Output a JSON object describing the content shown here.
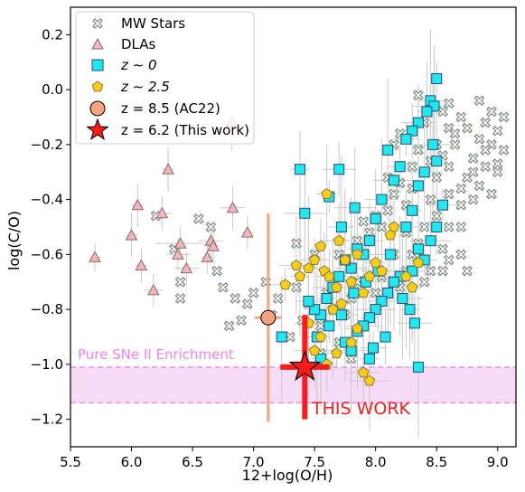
{
  "chart_data": {
    "type": "scatter",
    "xlabel": "12+log(O/H)",
    "ylabel": "log(C/O)",
    "xlim": [
      5.5,
      9.15
    ],
    "ylim": [
      -1.3,
      0.3
    ],
    "xticks": [
      5.5,
      6.0,
      6.5,
      7.0,
      7.5,
      8.0,
      8.5,
      9.0
    ],
    "xtick_labels": [
      "5.5",
      "6.0",
      "6.5",
      "7.0",
      "7.5",
      "8.0",
      "8.5",
      "9.0"
    ],
    "yticks": [
      -1.2,
      -1.0,
      -0.8,
      -0.6,
      -0.4,
      -0.2,
      0.0,
      0.2
    ],
    "ytick_labels": [
      "−1.2",
      "−1.0",
      "−0.8",
      "−0.6",
      "−0.4",
      "−0.2",
      "0.0",
      "0.2"
    ],
    "grid": false,
    "legend_position": "top-left",
    "band": {
      "y_low": -1.14,
      "y_high": -1.01,
      "label": "Pure SNe II Enrichment",
      "color": "#f7dcf7",
      "line_color": "#ee82ee"
    },
    "colors": {
      "mw": "#7a8a7a",
      "dla_fill": "#f2b6bd",
      "dla_edge": "#8a6a6a",
      "z0_fill": "#1ee8f0",
      "z25_fill": "#f7ce14",
      "ac22_fill": "#f6a47e",
      "this_work": "#ff1a1a",
      "errbar": "#c8c8c8"
    },
    "series": [
      {
        "name": "MW Stars",
        "marker": "x",
        "points": [
          [
            8.95,
            -0.08
          ],
          [
            8.9,
            -0.12
          ],
          [
            9.0,
            -0.15
          ],
          [
            8.85,
            -0.18
          ],
          [
            8.95,
            -0.2
          ],
          [
            9.05,
            -0.22
          ],
          [
            8.8,
            -0.25
          ],
          [
            8.9,
            -0.28
          ],
          [
            9.0,
            -0.3
          ],
          [
            8.75,
            -0.32
          ],
          [
            8.85,
            -0.35
          ],
          [
            8.95,
            -0.38
          ],
          [
            8.7,
            -0.1
          ],
          [
            8.6,
            -0.14
          ],
          [
            8.65,
            -0.2
          ],
          [
            8.8,
            -0.4
          ],
          [
            8.7,
            -0.36
          ],
          [
            8.6,
            -0.28
          ],
          [
            8.55,
            -0.24
          ],
          [
            8.5,
            -0.2
          ],
          [
            8.45,
            -0.26
          ],
          [
            8.4,
            -0.3
          ],
          [
            8.35,
            -0.22
          ],
          [
            8.3,
            -0.28
          ],
          [
            8.3,
            -0.36
          ],
          [
            8.25,
            -0.42
          ],
          [
            8.2,
            -0.34
          ],
          [
            8.15,
            -0.38
          ],
          [
            8.1,
            -0.32
          ],
          [
            8.1,
            -0.44
          ],
          [
            8.05,
            -0.5
          ],
          [
            8.0,
            -0.46
          ],
          [
            7.95,
            -0.52
          ],
          [
            7.9,
            -0.48
          ],
          [
            8.45,
            -0.4
          ],
          [
            8.5,
            -0.46
          ],
          [
            8.4,
            -0.5
          ],
          [
            8.35,
            -0.56
          ],
          [
            8.3,
            -0.6
          ],
          [
            8.55,
            -0.58
          ],
          [
            8.6,
            -0.62
          ],
          [
            8.7,
            -0.6
          ],
          [
            8.75,
            -0.66
          ],
          [
            8.45,
            -0.66
          ],
          [
            8.4,
            -0.7
          ],
          [
            8.25,
            -0.66
          ],
          [
            8.15,
            -0.6
          ],
          [
            8.2,
            -0.72
          ],
          [
            8.05,
            -0.68
          ],
          [
            8.0,
            -0.74
          ],
          [
            7.85,
            -0.7
          ],
          [
            7.8,
            -0.76
          ],
          [
            7.75,
            -0.82
          ],
          [
            7.65,
            -0.8
          ],
          [
            7.6,
            -0.74
          ],
          [
            7.55,
            -0.86
          ],
          [
            7.45,
            -0.78
          ],
          [
            7.4,
            -0.84
          ],
          [
            7.35,
            -0.72
          ],
          [
            7.3,
            -0.9
          ],
          [
            7.2,
            -0.76
          ],
          [
            7.15,
            -0.82
          ],
          [
            7.1,
            -0.7
          ],
          [
            7.0,
            -0.74
          ],
          [
            6.95,
            -0.78
          ],
          [
            6.9,
            -0.84
          ],
          [
            6.85,
            -0.76
          ],
          [
            6.8,
            -0.86
          ],
          [
            6.75,
            -0.72
          ],
          [
            6.7,
            -0.66
          ],
          [
            6.65,
            -0.5
          ],
          [
            6.55,
            -0.47
          ],
          [
            6.4,
            -0.7
          ],
          [
            6.4,
            -0.76
          ],
          [
            6.35,
            -0.58
          ],
          [
            6.2,
            -0.46
          ],
          [
            8.6,
            -0.05
          ],
          [
            8.55,
            -0.08
          ],
          [
            8.65,
            -0.16
          ],
          [
            8.75,
            -0.14
          ],
          [
            8.85,
            -0.04
          ],
          [
            9.05,
            -0.1
          ],
          [
            8.9,
            -0.22
          ],
          [
            8.8,
            -0.3
          ],
          [
            9.0,
            -0.27
          ],
          [
            8.7,
            -0.42
          ],
          [
            8.6,
            -0.5
          ],
          [
            8.55,
            -0.66
          ],
          [
            8.35,
            -0.02
          ],
          [
            7.85,
            -0.55
          ],
          [
            7.7,
            -0.6
          ],
          [
            7.5,
            -0.6
          ],
          [
            7.7,
            -0.92
          ],
          [
            7.55,
            -0.96
          ],
          [
            7.8,
            -0.98
          ],
          [
            7.35,
            -0.56
          ],
          [
            8.2,
            -0.16
          ],
          [
            8.15,
            -0.2
          ],
          [
            8.25,
            -0.52
          ],
          [
            8.4,
            -0.12
          ],
          [
            8.5,
            -0.32
          ],
          [
            8.6,
            -0.38
          ],
          [
            8.7,
            -0.5
          ]
        ]
      },
      {
        "name": "DLAs",
        "marker": "^",
        "points": [
          [
            5.7,
            -0.61,
            0.05,
            0.05
          ],
          [
            6.0,
            -0.53,
            0.05,
            0.08
          ],
          [
            6.05,
            -0.42,
            0.05,
            0.08
          ],
          [
            6.08,
            -0.64,
            0.05,
            0.06
          ],
          [
            6.18,
            -0.73,
            0.08,
            0.06
          ],
          [
            6.25,
            -0.45,
            0.08,
            0.06
          ],
          [
            6.3,
            -0.29,
            0.05,
            0.08
          ],
          [
            6.38,
            -0.6,
            0.1,
            0.06
          ],
          [
            6.4,
            -0.56,
            0.2,
            0.06
          ],
          [
            6.45,
            -0.65,
            0.1,
            0.06
          ],
          [
            6.65,
            -0.55,
            0.1,
            0.06
          ],
          [
            6.67,
            -0.57,
            0.05,
            0.06
          ],
          [
            6.62,
            -0.61,
            0.05,
            0.06
          ],
          [
            6.83,
            -0.43,
            0.1,
            0.08
          ],
          [
            6.95,
            -0.52,
            0.05,
            0.06
          ],
          [
            6.82,
            -0.12,
            0.08,
            0.1
          ]
        ]
      },
      {
        "name": "z~0",
        "marker": "s",
        "points": [
          [
            8.5,
            0.04
          ],
          [
            8.45,
            -0.04
          ],
          [
            8.48,
            -0.06
          ],
          [
            8.42,
            -0.08
          ],
          [
            8.35,
            -0.12
          ],
          [
            8.3,
            -0.15
          ],
          [
            8.25,
            -0.18
          ],
          [
            8.47,
            -0.2
          ],
          [
            8.5,
            -0.26
          ],
          [
            8.4,
            -0.3
          ],
          [
            8.35,
            -0.35
          ],
          [
            8.2,
            -0.28
          ],
          [
            8.15,
            -0.33
          ],
          [
            8.1,
            -0.22
          ],
          [
            8.05,
            -0.4
          ],
          [
            8.0,
            -0.47
          ],
          [
            7.95,
            -0.55
          ],
          [
            7.9,
            -0.6
          ],
          [
            7.85,
            -0.58
          ],
          [
            7.8,
            -0.65
          ],
          [
            7.75,
            -0.62
          ],
          [
            7.7,
            -0.68
          ],
          [
            7.65,
            -0.72
          ],
          [
            7.6,
            -0.76
          ],
          [
            7.55,
            -0.82
          ],
          [
            7.5,
            -0.8
          ],
          [
            7.45,
            -0.77
          ],
          [
            7.42,
            -0.45
          ],
          [
            7.38,
            -0.29
          ],
          [
            7.7,
            -0.29
          ],
          [
            7.62,
            -0.39
          ],
          [
            7.72,
            -0.5
          ],
          [
            7.83,
            -0.43
          ],
          [
            8.3,
            -0.44
          ],
          [
            8.25,
            -0.5
          ],
          [
            8.35,
            -0.58
          ],
          [
            8.4,
            -0.62
          ],
          [
            8.3,
            -0.66
          ],
          [
            8.2,
            -0.68
          ],
          [
            8.15,
            -0.7
          ],
          [
            8.1,
            -0.74
          ],
          [
            8.05,
            -0.77
          ],
          [
            8.0,
            -0.8
          ],
          [
            7.95,
            -0.83
          ],
          [
            7.9,
            -0.86
          ],
          [
            7.85,
            -0.88
          ],
          [
            7.75,
            -0.92
          ],
          [
            7.8,
            -0.95
          ],
          [
            7.95,
            -0.98
          ],
          [
            8.35,
            -1.01
          ],
          [
            7.23,
            -0.9
          ],
          [
            7.55,
            -0.98
          ],
          [
            8.45,
            -0.55
          ],
          [
            8.5,
            -0.5
          ],
          [
            8.55,
            -0.42
          ],
          [
            8.12,
            -0.6
          ],
          [
            8.02,
            -0.66
          ],
          [
            7.92,
            -0.7
          ],
          [
            7.82,
            -0.74
          ],
          [
            7.72,
            -0.82
          ],
          [
            7.62,
            -0.86
          ],
          [
            7.52,
            -0.9
          ],
          [
            8.22,
            -0.76
          ],
          [
            8.28,
            -0.8
          ],
          [
            8.32,
            -0.85
          ],
          [
            8.08,
            -0.9
          ],
          [
            7.98,
            -0.94
          ]
        ]
      },
      {
        "name": "z~2.5",
        "marker": "p",
        "points": [
          [
            7.6,
            -0.38
          ],
          [
            7.7,
            -0.55
          ],
          [
            7.55,
            -0.57
          ],
          [
            7.5,
            -0.62
          ],
          [
            7.45,
            -0.65
          ],
          [
            7.38,
            -0.68
          ],
          [
            7.35,
            -0.64
          ],
          [
            7.58,
            -0.66
          ],
          [
            7.62,
            -0.68
          ],
          [
            7.68,
            -0.72
          ],
          [
            7.75,
            -0.62
          ],
          [
            7.8,
            -0.7
          ],
          [
            7.85,
            -0.6
          ],
          [
            7.9,
            -0.74
          ],
          [
            7.95,
            -0.68
          ],
          [
            7.72,
            -0.78
          ],
          [
            7.65,
            -0.8
          ],
          [
            7.55,
            -0.9
          ],
          [
            7.45,
            -0.85
          ],
          [
            7.5,
            -0.95
          ],
          [
            7.6,
            -1.0
          ],
          [
            7.68,
            -0.96
          ],
          [
            7.8,
            -0.92
          ],
          [
            7.85,
            -0.87
          ],
          [
            7.95,
            -1.06
          ],
          [
            8.0,
            -0.63
          ],
          [
            8.15,
            -0.5
          ],
          [
            8.12,
            -0.53
          ],
          [
            8.25,
            -0.68
          ],
          [
            8.05,
            -0.66
          ],
          [
            8.3,
            -0.72
          ],
          [
            7.9,
            -1.03
          ],
          [
            8.35,
            -0.63
          ],
          [
            7.26,
            -0.71
          ]
        ]
      },
      {
        "name": "z=8.5 (AC22)",
        "marker": "o",
        "points": [
          [
            7.12,
            -0.83,
            0.11,
            0.38
          ]
        ]
      },
      {
        "name": "z=6.2 (This work)",
        "marker": "*",
        "points": [
          [
            7.42,
            -1.01,
            0.2,
            0.19
          ]
        ]
      }
    ],
    "annotation": "THIS WORK"
  },
  "legend": {
    "mw": "MW Stars",
    "dla": "DLAs",
    "z0": "z ∼ 0",
    "z25": "z ∼ 2.5",
    "ac22": "z = 8.5 (AC22)",
    "this": "z = 6.2 (This work)"
  },
  "annotations": {
    "band_label": "Pure SNe II Enrichment",
    "this_work": "THIS WORK"
  },
  "axes": {
    "xlabel": "12+log(O/H)",
    "ylabel": "log(C/O)"
  }
}
